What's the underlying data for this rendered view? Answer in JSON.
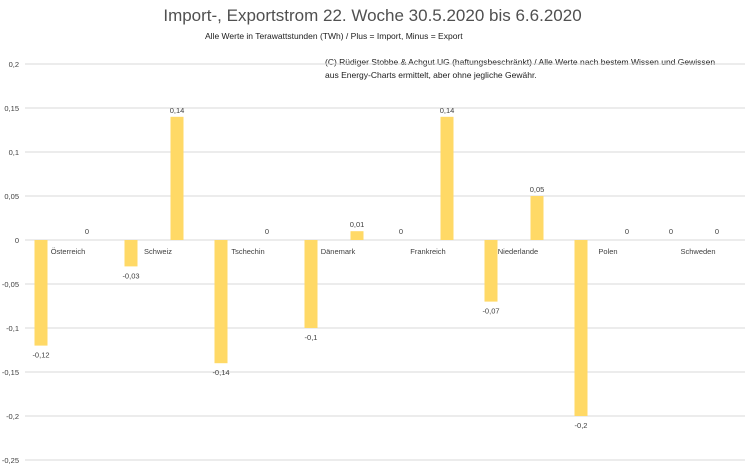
{
  "chart_data": {
    "type": "bar",
    "title": "Import-, Exportstrom 22. Woche 30.5.2020 bis 6.6.2020",
    "subtitle": "Alle Werte in Terawattstunden (TWh) / Plus = Import, Minus = Export",
    "annotation": "(C) Rüdiger Stobbe & Achgut UG (haftungsbeschränkt) / Alle Werte nach bestem Wissen und Gewissen aus Energy-Charts ermittelt, aber ohne jegliche Gewähr.",
    "categories": [
      "Österreich",
      "Schweiz",
      "Tschechin",
      "Dänemark",
      "Frankreich",
      "Niederlande",
      "Polen",
      "Schweden"
    ],
    "series": [
      {
        "name": "Export",
        "values": [
          -0.12,
          -0.03,
          -0.14,
          -0.1,
          0,
          -0.07,
          -0.2,
          0
        ]
      },
      {
        "name": "Import",
        "values": [
          0,
          0.14,
          0,
          0.01,
          0.14,
          0.05,
          0,
          0
        ]
      }
    ],
    "value_labels": [
      [
        "-0,12",
        "-0,03",
        "-0,14",
        "-0,1",
        "0",
        "-0,07",
        "-0,2",
        "0"
      ],
      [
        "0",
        "0,14",
        "0",
        "0,01",
        "0,14",
        "0,05",
        "0",
        "0"
      ]
    ],
    "yticks": [
      0.2,
      0.15,
      0.1,
      0.05,
      0,
      -0.05,
      -0.1,
      -0.15,
      -0.2,
      -0.25
    ],
    "ytick_labels": [
      "0,2",
      "0,15",
      "0,1",
      "0,05",
      "0",
      "-0,05",
      "-0,1",
      "-0,15",
      "-0,2",
      "-0,25"
    ],
    "ylim": [
      -0.25,
      0.2
    ],
    "grid": true,
    "legend": "none",
    "colors": {
      "bar": "#FFD966",
      "grid": "#D9D9D9",
      "text": "#404040"
    }
  }
}
